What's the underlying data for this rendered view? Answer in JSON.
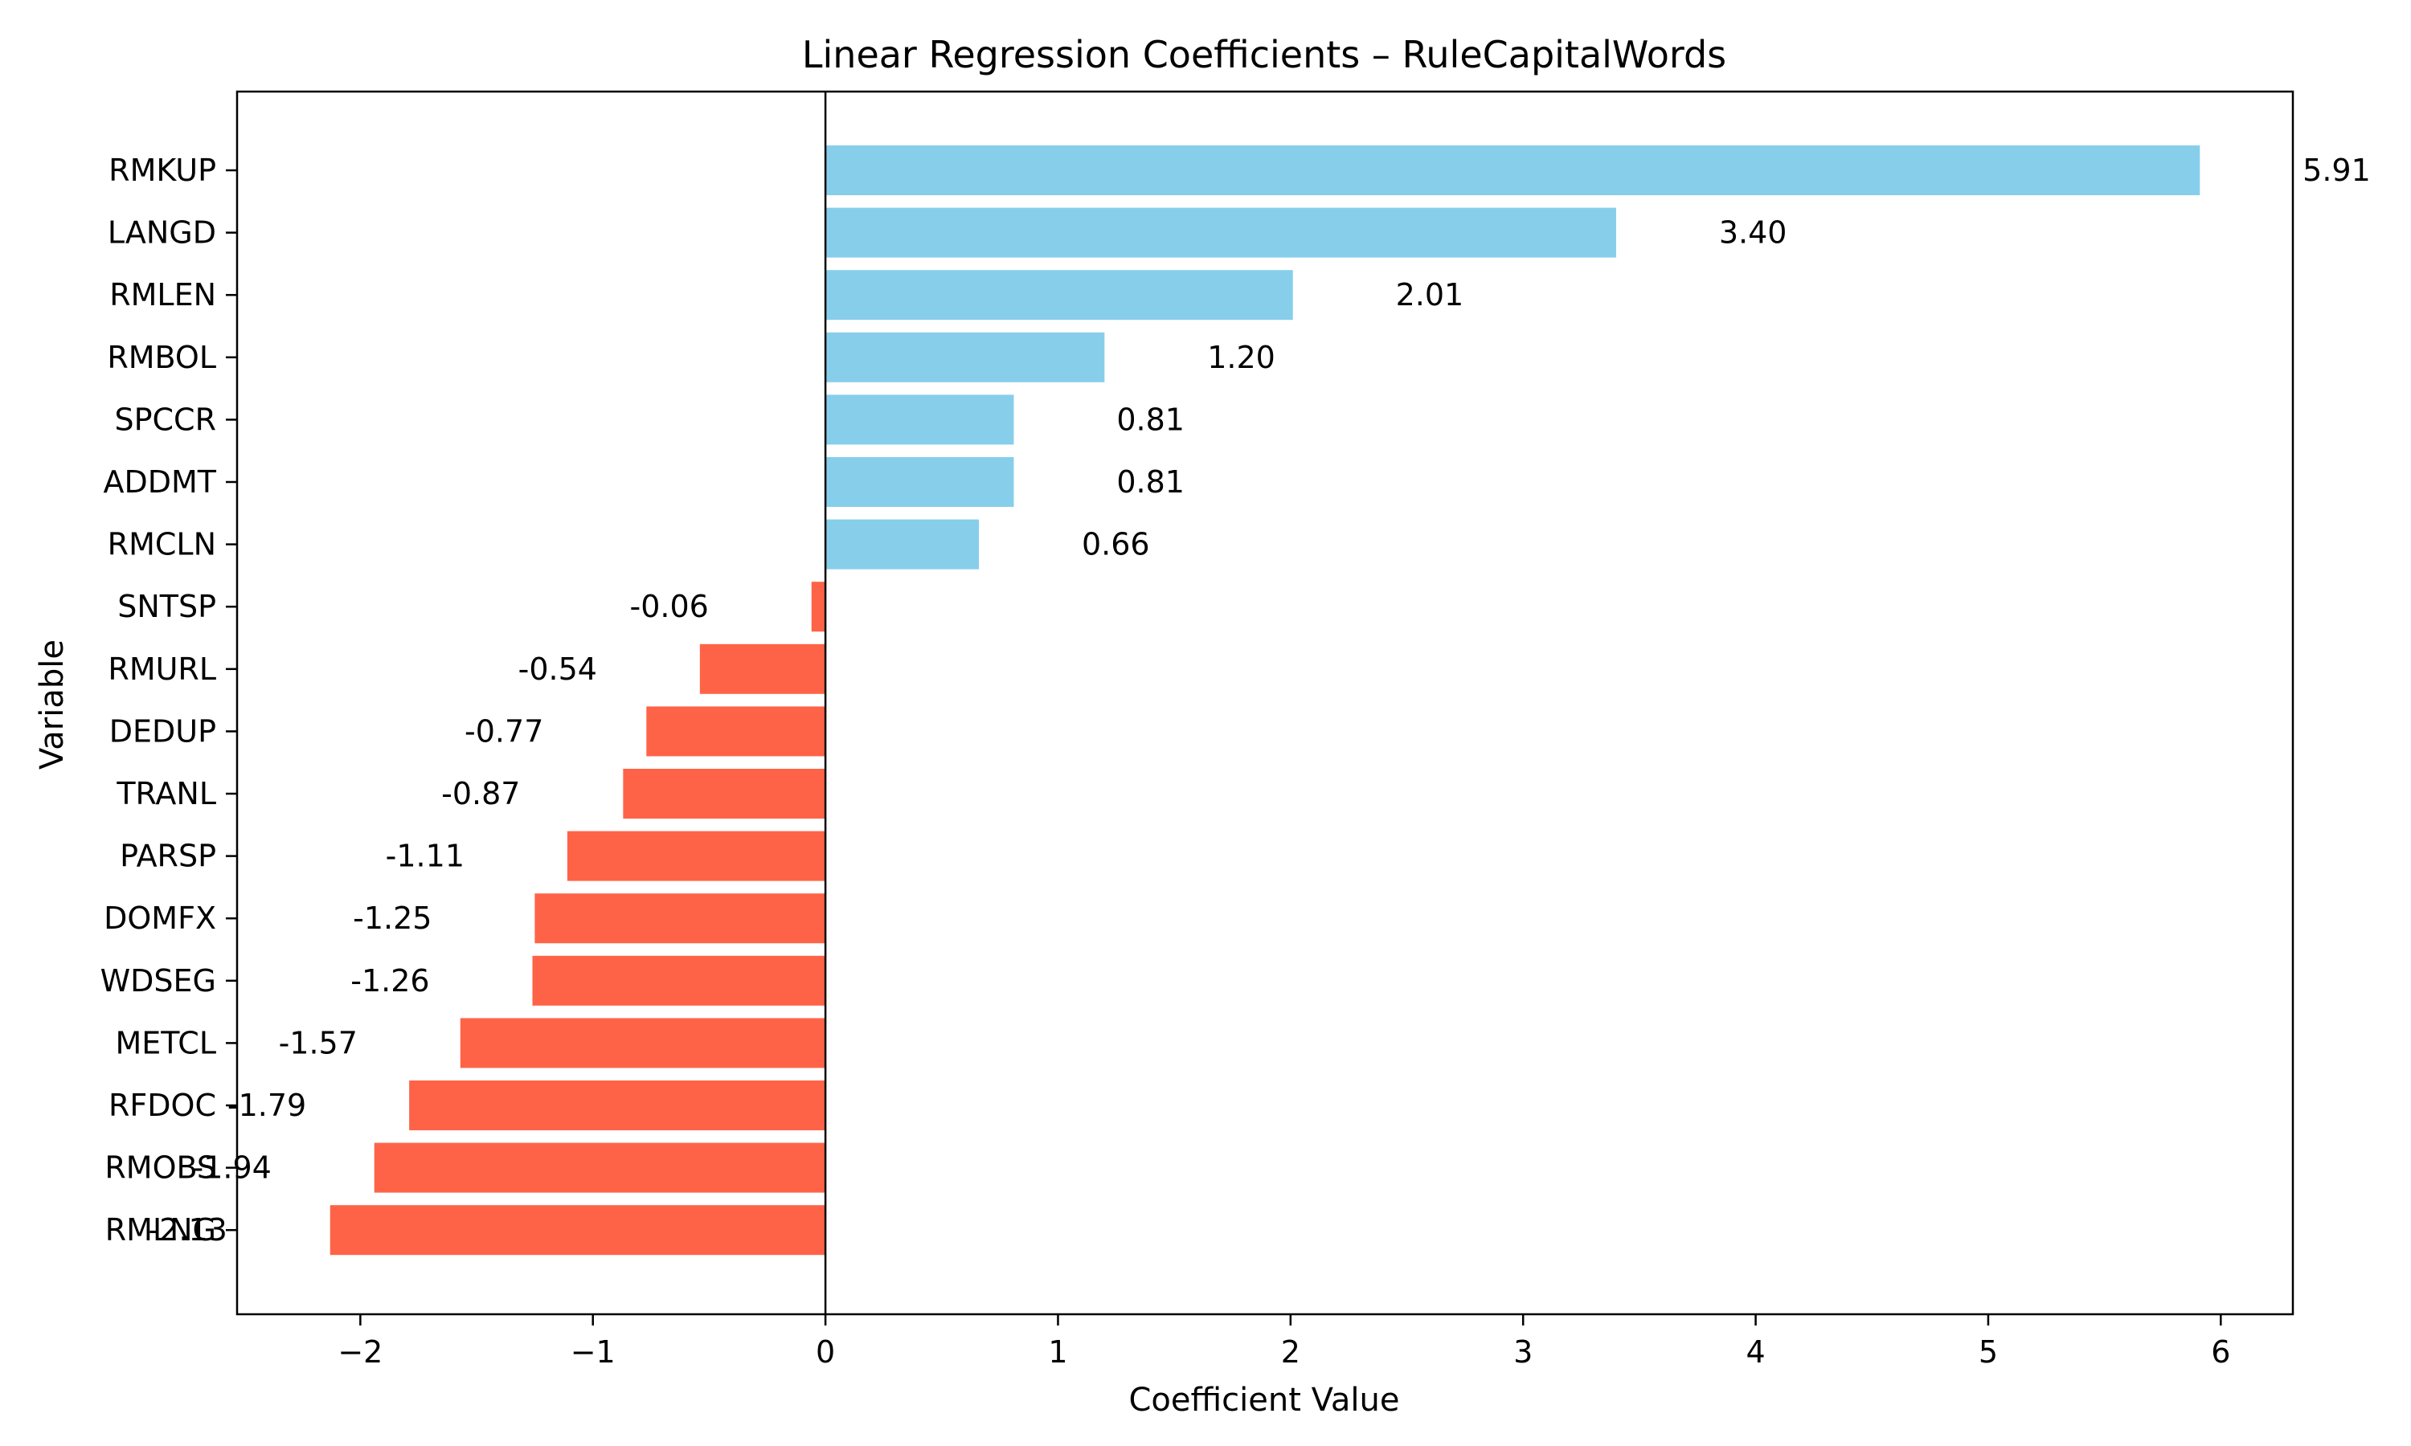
{
  "chart_data": {
    "type": "bar",
    "orientation": "horizontal",
    "title": "Linear Regression Coefficients – RuleCapitalWords",
    "xlabel": "Coefficient Value",
    "ylabel": "Variable",
    "xlim": [
      -2.53,
      6.31
    ],
    "xticks": [
      -2,
      -1,
      0,
      1,
      2,
      3,
      4,
      5,
      6
    ],
    "xtick_labels": [
      "−2",
      "−1",
      "0",
      "1",
      "2",
      "3",
      "4",
      "5",
      "6"
    ],
    "grid": false,
    "zero_line": true,
    "colors": {
      "positive": "#87CEEB",
      "negative": "#FF6347"
    },
    "categories": [
      "RMKUP",
      "LANGD",
      "RMLEN",
      "RMBOL",
      "SPCCR",
      "ADDMT",
      "RMCLN",
      "SNTSP",
      "RMURL",
      "DEDUP",
      "TRANL",
      "PARSP",
      "DOMFX",
      "WDSEG",
      "METCL",
      "RFDOC",
      "RMOBS",
      "RMLNG"
    ],
    "values": [
      5.91,
      3.4,
      2.01,
      1.2,
      0.81,
      0.81,
      0.66,
      -0.06,
      -0.54,
      -0.77,
      -0.87,
      -1.11,
      -1.25,
      -1.26,
      -1.57,
      -1.79,
      -1.94,
      -2.13
    ],
    "data_labels": [
      "5.91",
      "3.40",
      "2.01",
      "1.20",
      "0.81",
      "0.81",
      "0.66",
      "-0.06",
      "-0.54",
      "-0.77",
      "-0.87",
      "-1.11",
      "-1.25",
      "-1.26",
      "-1.57",
      "-1.79",
      "-1.94",
      "-2.13"
    ]
  }
}
